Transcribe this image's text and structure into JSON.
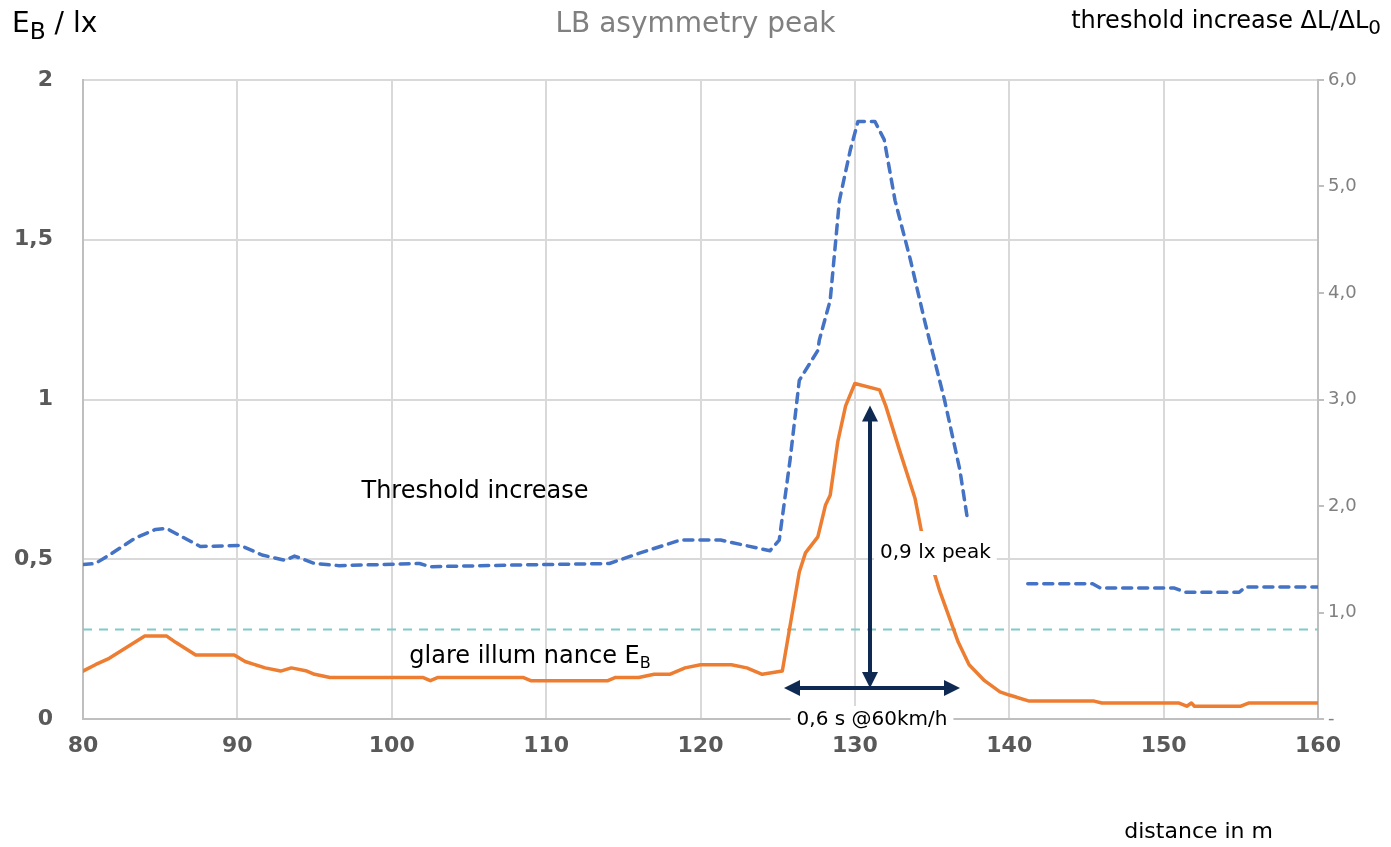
{
  "chart_data": {
    "type": "line",
    "title": "LB asymmetry peak",
    "xlabel": "distance in m",
    "ylabel": "E$_{B}$ / lx",
    "y2label": "threshold increase ΔL/ΔL$_{0}$",
    "xlim": [
      80,
      160
    ],
    "xticks": [
      80,
      90,
      100,
      110,
      120,
      130,
      140,
      150,
      160
    ],
    "ylim": [
      0,
      2
    ],
    "yticks": [
      0,
      {
        "value": 0.5,
        "label": "0,5"
      },
      1,
      {
        "value": 1.5,
        "label": "1,5"
      },
      2
    ],
    "y2lim": [
      0,
      6
    ],
    "y2ticks": [
      {
        "value": 0,
        "label": "-"
      },
      {
        "value": 1,
        "label": "1,0"
      },
      {
        "value": 2,
        "label": "2,0"
      },
      {
        "value": 3,
        "label": "3,0"
      },
      {
        "value": 4,
        "label": "4,0"
      },
      {
        "value": 5,
        "label": "5,0"
      },
      {
        "value": 6,
        "label": "6,0"
      }
    ],
    "grid": true,
    "legend": false,
    "marker": "none",
    "series": [
      {
        "name": "glare illum nance E$_{B}$",
        "color": "#ed7d31",
        "line_style": "solid",
        "x": [
          80,
          80.8,
          81.7,
          84,
          85.4,
          86,
          87.3,
          89.8,
          90.5,
          91.8,
          92.8,
          93.5,
          94.5,
          95,
          96,
          102,
          102.5,
          103,
          108.5,
          109,
          114,
          114.5,
          116,
          117,
          118,
          119,
          120,
          122,
          123,
          124,
          125.3,
          126.4,
          126.8,
          127.6,
          128.1,
          128.4,
          128.9,
          129.4,
          130,
          131.6,
          132,
          132.9,
          133.9,
          134.3,
          135.5,
          136.7,
          137.4,
          138.4,
          139.4,
          140,
          141.3,
          145.5,
          146,
          151,
          151.5,
          151.8,
          152,
          155,
          155.5,
          160
        ],
        "values": [
          0.15,
          0.17,
          0.19,
          0.26,
          0.26,
          0.24,
          0.2,
          0.2,
          0.18,
          0.16,
          0.15,
          0.16,
          0.15,
          0.14,
          0.13,
          0.13,
          0.12,
          0.13,
          0.13,
          0.12,
          0.12,
          0.13,
          0.13,
          0.14,
          0.14,
          0.16,
          0.17,
          0.17,
          0.16,
          0.14,
          0.15,
          0.46,
          0.52,
          0.57,
          0.67,
          0.7,
          0.87,
          0.98,
          1.05,
          1.03,
          0.98,
          0.84,
          0.69,
          0.59,
          0.4,
          0.24,
          0.17,
          0.12,
          0.085,
          0.075,
          0.056,
          0.056,
          0.05,
          0.05,
          0.04,
          0.05,
          0.04,
          0.04,
          0.05,
          0.05
        ]
      },
      {
        "name": "Threshold increase",
        "color": "#4472c4",
        "line_style": "dashed",
        "axis": "y2",
        "x": [
          80,
          80.8,
          81.7,
          83.4,
          84.7,
          85.4,
          87.6,
          90.2,
          91.6,
          93.1,
          93.7,
          95,
          96.6,
          101.8,
          102.5,
          109.6,
          114.1,
          116.1,
          118.7,
          121.3,
          122.9,
          124.5,
          125.1,
          125.8,
          126.4,
          127.6,
          127.7,
          128.4,
          129,
          129.7,
          130.2,
          131.3,
          131.9,
          132.6,
          133.6,
          134.5,
          135.8,
          136.8,
          137.3,
          139,
          141.2,
          145.4,
          145.9,
          150.7,
          151.4,
          154.9,
          155.3,
          159.3,
          160
        ],
        "values": [
          1.45,
          1.46,
          1.54,
          1.7,
          1.78,
          1.79,
          1.62,
          1.63,
          1.54,
          1.49,
          1.53,
          1.46,
          1.44,
          1.46,
          1.43,
          1.45,
          1.46,
          1.56,
          1.68,
          1.68,
          1.63,
          1.58,
          1.68,
          2.43,
          3.18,
          3.46,
          3.56,
          3.93,
          4.87,
          5.34,
          5.61,
          5.61,
          5.44,
          4.87,
          4.31,
          3.75,
          3,
          2.34,
          1.87,
          null,
          1.27,
          1.27,
          1.23,
          1.23,
          1.19,
          1.19,
          1.24,
          1.24,
          1.24
        ]
      }
    ],
    "ref_lines": [
      {
        "axis": "y",
        "value": 0.28,
        "color": "#7fcaca",
        "line_style": "dashed"
      }
    ],
    "annotations": [
      "0,9 lx peak",
      "0,6 s @60km/h"
    ]
  }
}
